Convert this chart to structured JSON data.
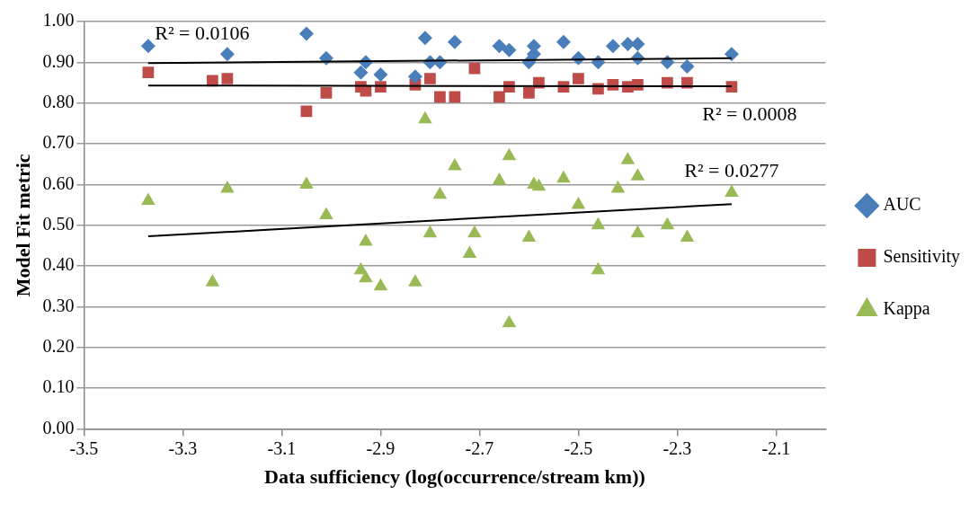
{
  "chart_data": {
    "type": "scatter",
    "xlabel": "Data sufficiency (log(occurrence/stream km))",
    "ylabel": "Model Fit metric",
    "xlim": [
      -3.5,
      -2.0
    ],
    "xticks": [
      -3.5,
      -3.3,
      -3.1,
      -2.9,
      -2.7,
      -2.5,
      -2.3,
      -2.1
    ],
    "ylim": [
      0,
      1
    ],
    "yticks": [
      {
        "value": 0,
        "label": "0.00"
      },
      {
        "value": 0.1,
        "label": "0.10"
      },
      {
        "value": 0.2,
        "label": "0.20"
      },
      {
        "value": 0.3,
        "label": "0.30"
      },
      {
        "value": 0.4,
        "label": "0.40"
      },
      {
        "value": 0.5,
        "label": "0.50"
      },
      {
        "value": 0.6,
        "label": "0.60"
      },
      {
        "value": 0.7,
        "label": "0.70"
      },
      {
        "value": 0.8,
        "label": "0.80"
      },
      {
        "value": 0.9,
        "label": "0.90"
      },
      {
        "value": 1,
        "label": "1.00"
      }
    ],
    "grid": "y",
    "legend": "right",
    "series": [
      {
        "name": "AUC",
        "color": "#4a7ebb",
        "marker": "diamond",
        "x": [
          -3.37,
          -3.21,
          -3.05,
          -3.01,
          -2.93,
          -2.94,
          -2.9,
          -2.81,
          -2.83,
          -2.8,
          -2.78,
          -2.75,
          -2.66,
          -2.64,
          -2.59,
          -2.59,
          -2.6,
          -2.53,
          -2.5,
          -2.46,
          -2.43,
          -2.4,
          -2.38,
          -2.38,
          -2.32,
          -2.28,
          -2.19
        ],
        "values": [
          0.94,
          0.92,
          0.97,
          0.91,
          0.9,
          0.875,
          0.87,
          0.96,
          0.865,
          0.9,
          0.9,
          0.95,
          0.94,
          0.93,
          0.94,
          0.92,
          0.9,
          0.95,
          0.91,
          0.9,
          0.94,
          0.945,
          0.945,
          0.91,
          0.9,
          0.89,
          0.92
        ]
      },
      {
        "name": "Sensitivity",
        "color": "#be4b48",
        "marker": "square",
        "x": [
          -3.37,
          -3.24,
          -3.21,
          -3.05,
          -3.01,
          -2.94,
          -2.93,
          -2.9,
          -2.83,
          -2.8,
          -2.78,
          -2.75,
          -2.71,
          -2.66,
          -2.64,
          -2.6,
          -2.58,
          -2.53,
          -2.5,
          -2.46,
          -2.43,
          -2.4,
          -2.38,
          -2.32,
          -2.28,
          -2.19
        ],
        "values": [
          0.875,
          0.855,
          0.86,
          0.78,
          0.825,
          0.84,
          0.83,
          0.84,
          0.845,
          0.86,
          0.815,
          0.815,
          0.885,
          0.815,
          0.84,
          0.825,
          0.85,
          0.84,
          0.86,
          0.835,
          0.845,
          0.84,
          0.845,
          0.85,
          0.85,
          0.84
        ]
      },
      {
        "name": "Kappa",
        "color": "#98b954",
        "marker": "triangle",
        "x": [
          -3.37,
          -3.24,
          -3.21,
          -3.05,
          -3.01,
          -2.93,
          -2.94,
          -2.93,
          -2.9,
          -2.83,
          -2.81,
          -2.8,
          -2.78,
          -2.75,
          -2.71,
          -2.72,
          -2.66,
          -2.64,
          -2.64,
          -2.6,
          -2.59,
          -2.58,
          -2.53,
          -2.5,
          -2.46,
          -2.46,
          -2.42,
          -2.4,
          -2.38,
          -2.38,
          -2.32,
          -2.28,
          -2.19
        ],
        "values": [
          0.56,
          0.36,
          0.59,
          0.6,
          0.525,
          0.46,
          0.39,
          0.37,
          0.35,
          0.36,
          0.76,
          0.48,
          0.575,
          0.645,
          0.48,
          0.43,
          0.61,
          0.67,
          0.26,
          0.47,
          0.6,
          0.595,
          0.615,
          0.55,
          0.5,
          0.39,
          0.59,
          0.66,
          0.48,
          0.62,
          0.5,
          0.47,
          0.58
        ]
      },
      {
        "type": "line",
        "color": "#000000",
        "marker": "none",
        "x": [
          -3.37,
          -2.19
        ],
        "values": [
          0.898,
          0.91
        ]
      },
      {
        "type": "line",
        "color": "#000000",
        "marker": "none",
        "x": [
          -3.37,
          -2.19
        ],
        "values": [
          0.843,
          0.841
        ]
      },
      {
        "type": "line",
        "color": "#000000",
        "marker": "none",
        "x": [
          -3.37,
          -2.19
        ],
        "values": [
          0.473,
          0.552
        ]
      }
    ],
    "annotations": [
      "R² = 0.0106",
      "R² = 0.0008",
      "R² = 0.0277"
    ]
  }
}
